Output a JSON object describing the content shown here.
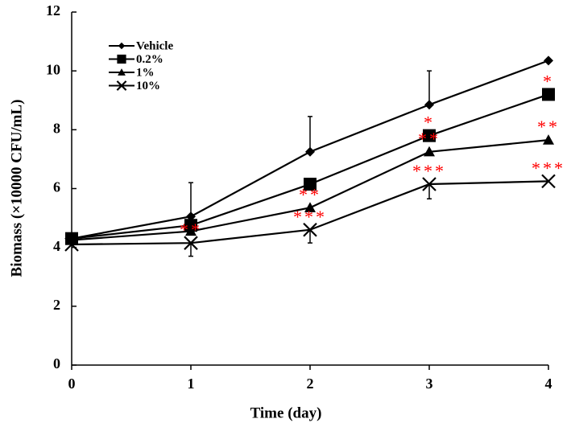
{
  "chart_data": {
    "type": "line",
    "xlabel": "Time (day)",
    "ylabel": "Biomass (×10000 CFU/mL)",
    "x": [
      0,
      1,
      2,
      3,
      4
    ],
    "xlim": [
      0,
      4
    ],
    "xticks": [
      0,
      1,
      2,
      3,
      4
    ],
    "ylim": [
      0,
      12
    ],
    "yticks": [
      0,
      2,
      4,
      6,
      8,
      10,
      12
    ],
    "legend": "upper-left",
    "series": [
      {
        "name": "Vehicle",
        "color": "#000000",
        "marker": "diamond",
        "values": [
          4.3,
          5.05,
          7.25,
          8.85,
          10.35
        ],
        "errors": [
          null,
          1.15,
          1.2,
          1.15,
          null
        ],
        "error_direction": "up",
        "significance": [
          null,
          null,
          null,
          null,
          null
        ]
      },
      {
        "name": "0.2%",
        "color": "#000000",
        "marker": "square",
        "values": [
          4.3,
          4.75,
          6.15,
          7.8,
          9.2
        ],
        "errors": [
          null,
          null,
          null,
          null,
          null
        ],
        "error_direction": "up",
        "significance": [
          null,
          null,
          null,
          "*",
          "*"
        ]
      },
      {
        "name": "1%",
        "color": "#000000",
        "marker": "triangle",
        "values": [
          4.25,
          4.55,
          5.35,
          7.25,
          7.65
        ],
        "errors": [
          null,
          null,
          null,
          null,
          null
        ],
        "error_direction": "up",
        "significance": [
          null,
          null,
          "**",
          "**",
          "**"
        ]
      },
      {
        "name": "10%",
        "color": "#000000",
        "marker": "x",
        "values": [
          4.1,
          4.15,
          4.6,
          6.15,
          6.25
        ],
        "errors": [
          null,
          0.45,
          0.45,
          0.5,
          null
        ],
        "error_direction": "down",
        "significance": [
          null,
          "**",
          "***",
          "***",
          "***"
        ]
      }
    ],
    "significance_color": "#ff0000"
  }
}
